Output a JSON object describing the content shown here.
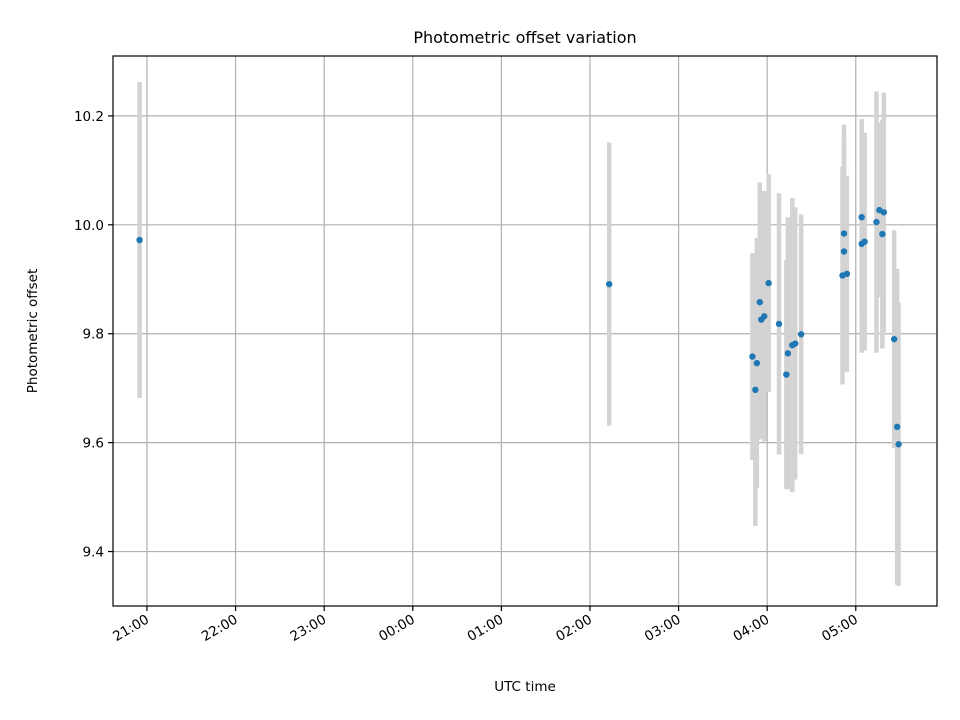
{
  "chart_data": {
    "type": "scatter",
    "title": "Photometric offset variation",
    "xlabel": "UTC time",
    "ylabel": "Photometric offset",
    "grid": true,
    "x_tick_labels": [
      "21:00",
      "22:00",
      "23:00",
      "00:00",
      "01:00",
      "02:00",
      "03:00",
      "04:00",
      "05:00"
    ],
    "y_tick_labels": [
      "9.4",
      "9.6",
      "9.8",
      "10.0",
      "10.2"
    ],
    "y_ticks": [
      9.4,
      9.6,
      9.8,
      10.0,
      10.2
    ],
    "ylim": [
      9.3,
      10.31
    ],
    "xlim": [
      "20:37",
      "05:55"
    ],
    "colors": {
      "marker": "#1f77b4",
      "errorbar": "#d3d3d3"
    },
    "points": [
      {
        "t": "20:55",
        "y": 9.972,
        "err": 0.29
      },
      {
        "t": "02:13",
        "y": 9.891,
        "err": 0.26
      },
      {
        "t": "03:50",
        "y": 9.758,
        "err": 0.19
      },
      {
        "t": "03:52",
        "y": 9.697,
        "err": 0.25
      },
      {
        "t": "03:53",
        "y": 9.746,
        "err": 0.23
      },
      {
        "t": "03:55",
        "y": 9.858,
        "err": 0.22
      },
      {
        "t": "03:56",
        "y": 9.826,
        "err": 0.22
      },
      {
        "t": "03:58",
        "y": 9.832,
        "err": 0.23
      },
      {
        "t": "04:01",
        "y": 9.893,
        "err": 0.2
      },
      {
        "t": "04:08",
        "y": 9.818,
        "err": 0.24
      },
      {
        "t": "04:13",
        "y": 9.725,
        "err": 0.21
      },
      {
        "t": "04:14",
        "y": 9.764,
        "err": 0.25
      },
      {
        "t": "04:17",
        "y": 9.779,
        "err": 0.27
      },
      {
        "t": "04:19",
        "y": 9.782,
        "err": 0.25
      },
      {
        "t": "04:23",
        "y": 9.799,
        "err": 0.22
      },
      {
        "t": "04:51",
        "y": 9.907,
        "err": 0.2
      },
      {
        "t": "04:52",
        "y": 9.984,
        "err": 0.2
      },
      {
        "t": "04:52",
        "y": 9.951,
        "err": 0.21
      },
      {
        "t": "04:54",
        "y": 9.91,
        "err": 0.18
      },
      {
        "t": "05:04",
        "y": 10.014,
        "err": 0.18
      },
      {
        "t": "05:04",
        "y": 9.965,
        "err": 0.2
      },
      {
        "t": "05:06",
        "y": 9.969,
        "err": 0.2
      },
      {
        "t": "05:14",
        "y": 10.005,
        "err": 0.24
      },
      {
        "t": "05:16",
        "y": 10.027,
        "err": 0.16
      },
      {
        "t": "05:18",
        "y": 9.983,
        "err": 0.21
      },
      {
        "t": "05:19",
        "y": 10.023,
        "err": 0.22
      },
      {
        "t": "05:26",
        "y": 9.79,
        "err": 0.2
      },
      {
        "t": "05:28",
        "y": 9.629,
        "err": 0.29
      },
      {
        "t": "05:29",
        "y": 9.597,
        "err": 0.26
      }
    ]
  }
}
